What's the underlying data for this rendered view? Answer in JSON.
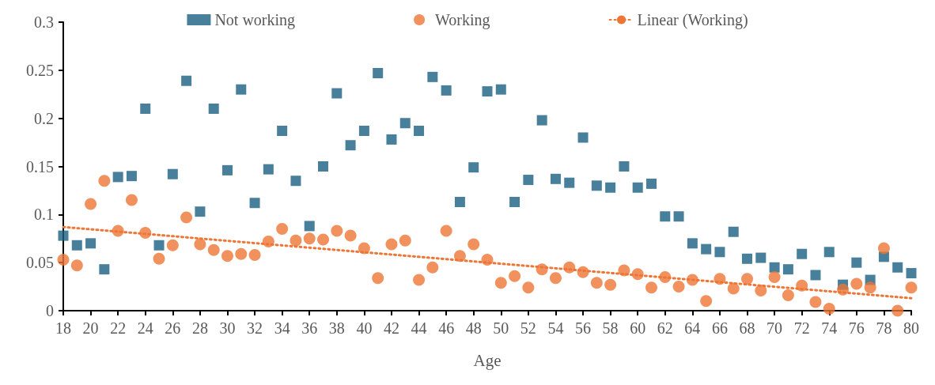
{
  "chart_data": {
    "type": "scatter",
    "xlabel": "Age",
    "x": [
      18,
      19,
      20,
      21,
      22,
      23,
      24,
      25,
      26,
      27,
      28,
      29,
      30,
      31,
      32,
      33,
      34,
      35,
      36,
      37,
      38,
      39,
      40,
      41,
      42,
      43,
      44,
      45,
      46,
      47,
      48,
      49,
      50,
      51,
      52,
      53,
      54,
      55,
      56,
      57,
      58,
      59,
      60,
      61,
      62,
      63,
      64,
      65,
      66,
      67,
      68,
      69,
      70,
      71,
      72,
      73,
      74,
      75,
      76,
      77,
      78,
      79,
      80
    ],
    "series": [
      {
        "name": "Not working",
        "color": "#1a5f82",
        "marker": "square",
        "values": [
          0.078,
          0.068,
          0.07,
          0.043,
          0.139,
          0.14,
          0.21,
          0.068,
          0.142,
          0.239,
          0.103,
          0.21,
          0.146,
          0.23,
          0.112,
          0.147,
          0.187,
          0.135,
          0.088,
          0.15,
          0.226,
          0.172,
          0.187,
          0.247,
          0.178,
          0.195,
          0.187,
          0.243,
          0.229,
          0.113,
          0.149,
          0.228,
          0.23,
          0.113,
          0.136,
          0.198,
          0.137,
          0.133,
          0.18,
          0.13,
          0.128,
          0.15,
          0.128,
          0.132,
          0.098,
          0.098,
          0.07,
          0.064,
          0.061,
          0.082,
          0.054,
          0.055,
          0.045,
          0.043,
          0.059,
          0.037,
          0.061,
          0.027,
          0.05,
          0.032,
          0.056,
          0.045,
          0.039
        ]
      },
      {
        "name": "Working",
        "color": "#ed7636",
        "marker": "circle",
        "values": [
          0.053,
          0.047,
          0.111,
          0.135,
          0.083,
          0.115,
          0.081,
          0.054,
          0.068,
          0.097,
          0.069,
          0.063,
          0.057,
          0.059,
          0.058,
          0.072,
          0.085,
          0.073,
          0.075,
          0.074,
          0.083,
          0.078,
          0.065,
          0.034,
          0.069,
          0.073,
          0.032,
          0.045,
          0.083,
          0.057,
          0.069,
          0.053,
          0.029,
          0.036,
          0.024,
          0.043,
          0.034,
          0.045,
          0.04,
          0.029,
          0.027,
          0.042,
          0.038,
          0.024,
          0.035,
          0.025,
          0.032,
          0.01,
          0.033,
          0.023,
          0.033,
          0.021,
          0.035,
          0.016,
          0.026,
          0.009,
          0.002,
          0.022,
          0.028,
          0.024,
          0.065,
          0.0,
          0.024
        ]
      },
      {
        "name": "Linear (Working)",
        "type": "line",
        "color": "#ed7636",
        "marker": "none",
        "line_style": "dotted",
        "x": [
          18,
          80
        ],
        "values": [
          0.087,
          0.013
        ]
      }
    ],
    "xlim": [
      18,
      80
    ],
    "xticks": [
      18,
      20,
      22,
      24,
      26,
      28,
      30,
      32,
      34,
      36,
      38,
      40,
      42,
      44,
      46,
      48,
      50,
      52,
      54,
      56,
      58,
      60,
      62,
      64,
      66,
      68,
      70,
      72,
      74,
      76,
      78,
      80
    ],
    "ylim": [
      0,
      0.3
    ],
    "yticks": [
      0,
      0.05,
      0.1,
      0.15,
      0.2,
      0.25,
      0.3
    ],
    "grid": false,
    "legend": "top"
  }
}
